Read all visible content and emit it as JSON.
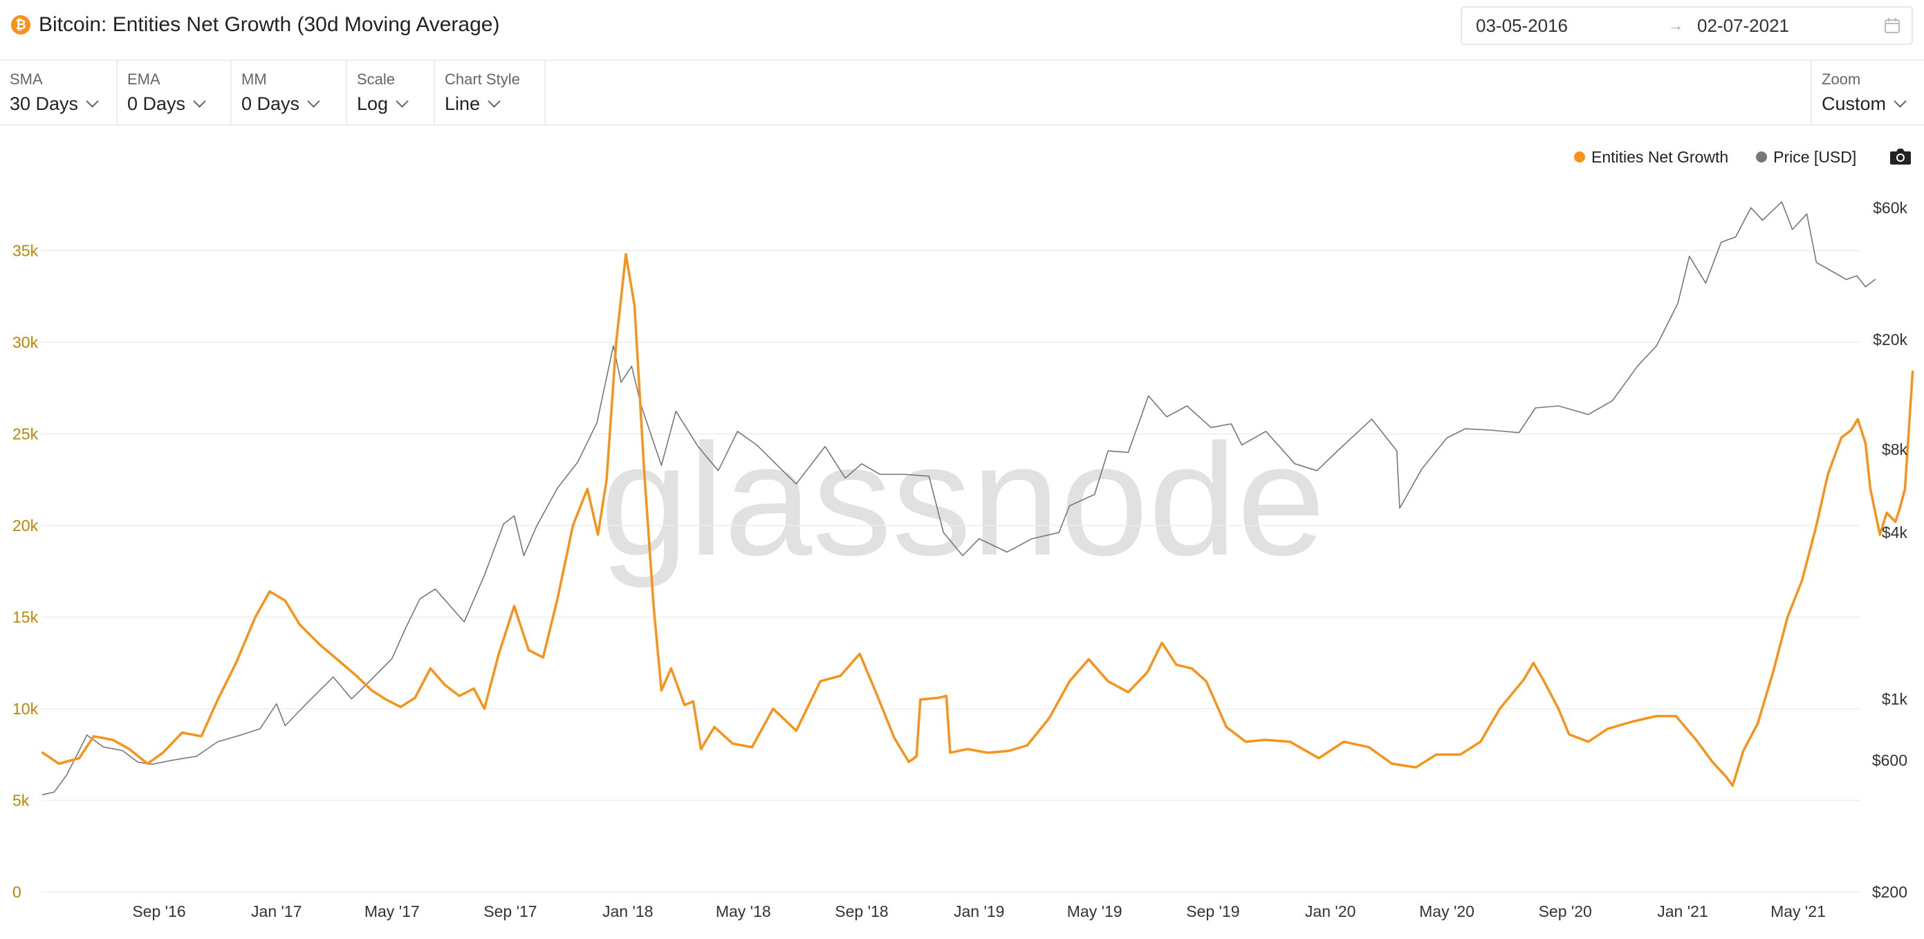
{
  "header": {
    "title": "Bitcoin: Entities Net Growth (30d Moving Average)",
    "icon": "bitcoin-icon",
    "date_start": "03-05-2016",
    "date_arrow": "→",
    "date_end": "02-07-2021"
  },
  "toolbar": {
    "sma": {
      "label": "SMA",
      "value": "30 Days"
    },
    "ema": {
      "label": "EMA",
      "value": "0 Days"
    },
    "mm": {
      "label": "MM",
      "value": "0 Days"
    },
    "scale": {
      "label": "Scale",
      "value": "Log"
    },
    "chart_style": {
      "label": "Chart Style",
      "value": "Line"
    },
    "zoom": {
      "label": "Zoom",
      "value": "Custom"
    }
  },
  "watermark": "glassnode",
  "colors": {
    "growth": "#f7931a",
    "price": "#777777",
    "left_axis": "#b8860b",
    "grid": "#eeeeee"
  },
  "chart_data": {
    "type": "line",
    "title": "Bitcoin: Entities Net Growth (30d Moving Average)",
    "legend": {
      "position": "top-right",
      "entries": [
        "Entities Net Growth",
        "Price [USD]"
      ]
    },
    "grid": true,
    "x_range": [
      "2016-05-03",
      "2021-07-02"
    ],
    "x_ticks": [
      {
        "date": "2016-09-01",
        "label": "Sep '16"
      },
      {
        "date": "2017-01-01",
        "label": "Jan '17"
      },
      {
        "date": "2017-05-01",
        "label": "May '17"
      },
      {
        "date": "2017-09-01",
        "label": "Sep '17"
      },
      {
        "date": "2018-01-01",
        "label": "Jan '18"
      },
      {
        "date": "2018-05-01",
        "label": "May '18"
      },
      {
        "date": "2018-09-01",
        "label": "Sep '18"
      },
      {
        "date": "2019-01-01",
        "label": "Jan '19"
      },
      {
        "date": "2019-05-01",
        "label": "May '19"
      },
      {
        "date": "2019-09-01",
        "label": "Sep '19"
      },
      {
        "date": "2020-01-01",
        "label": "Jan '20"
      },
      {
        "date": "2020-05-01",
        "label": "May '20"
      },
      {
        "date": "2020-09-01",
        "label": "Sep '20"
      },
      {
        "date": "2021-01-01",
        "label": "Jan '21"
      },
      {
        "date": "2021-05-01",
        "label": "May '21"
      }
    ],
    "y_left": {
      "range": [
        0,
        40000
      ],
      "ticks": [
        {
          "value": 0,
          "label": "0"
        },
        {
          "value": 5000,
          "label": "5k"
        },
        {
          "value": 10000,
          "label": "10k"
        },
        {
          "value": 15000,
          "label": "15k"
        },
        {
          "value": 20000,
          "label": "20k"
        },
        {
          "value": 25000,
          "label": "25k"
        },
        {
          "value": 30000,
          "label": "30k"
        },
        {
          "value": 35000,
          "label": "35k"
        }
      ]
    },
    "y_right": {
      "scale": "log",
      "range": [
        200,
        90000
      ],
      "ticks": [
        {
          "value": 200,
          "label": "$200"
        },
        {
          "value": 600,
          "label": "$600"
        },
        {
          "value": 1000,
          "label": "$1k"
        },
        {
          "value": 4000,
          "label": "$4k"
        },
        {
          "value": 8000,
          "label": "$8k"
        },
        {
          "value": 20000,
          "label": "$20k"
        },
        {
          "value": 60000,
          "label": "$60k"
        }
      ]
    },
    "series": [
      {
        "name": "Entities Net Growth",
        "axis": "left",
        "points": [
          [
            "2016-05-03",
            7600
          ],
          [
            "2016-05-20",
            7000
          ],
          [
            "2016-06-10",
            7300
          ],
          [
            "2016-06-25",
            8500
          ],
          [
            "2016-07-15",
            8300
          ],
          [
            "2016-08-01",
            7800
          ],
          [
            "2016-08-20",
            7000
          ],
          [
            "2016-09-05",
            7600
          ],
          [
            "2016-09-25",
            8700
          ],
          [
            "2016-10-15",
            8500
          ],
          [
            "2016-11-01",
            10500
          ],
          [
            "2016-11-20",
            12500
          ],
          [
            "2016-12-10",
            15000
          ],
          [
            "2016-12-25",
            16400
          ],
          [
            "2017-01-10",
            15900
          ],
          [
            "2017-01-25",
            14600
          ],
          [
            "2017-02-15",
            13500
          ],
          [
            "2017-03-05",
            12700
          ],
          [
            "2017-03-25",
            11800
          ],
          [
            "2017-04-10",
            11000
          ],
          [
            "2017-04-25",
            10500
          ],
          [
            "2017-05-10",
            10100
          ],
          [
            "2017-05-25",
            10600
          ],
          [
            "2017-06-10",
            12200
          ],
          [
            "2017-06-25",
            11300
          ],
          [
            "2017-07-10",
            10700
          ],
          [
            "2017-07-25",
            11100
          ],
          [
            "2017-08-05",
            10000
          ],
          [
            "2017-08-20",
            13000
          ],
          [
            "2017-09-05",
            15600
          ],
          [
            "2017-09-20",
            13200
          ],
          [
            "2017-10-05",
            12800
          ],
          [
            "2017-10-20",
            16000
          ],
          [
            "2017-11-05",
            20000
          ],
          [
            "2017-11-20",
            22000
          ],
          [
            "2017-12-01",
            19500
          ],
          [
            "2017-12-10",
            22500
          ],
          [
            "2017-12-20",
            30000
          ],
          [
            "2017-12-30",
            34800
          ],
          [
            "2018-01-08",
            32000
          ],
          [
            "2018-01-18",
            23000
          ],
          [
            "2018-01-28",
            15500
          ],
          [
            "2018-02-05",
            11000
          ],
          [
            "2018-02-15",
            12200
          ],
          [
            "2018-03-01",
            10200
          ],
          [
            "2018-03-10",
            10400
          ],
          [
            "2018-03-18",
            7800
          ],
          [
            "2018-04-01",
            9000
          ],
          [
            "2018-04-20",
            8100
          ],
          [
            "2018-05-10",
            7900
          ],
          [
            "2018-06-01",
            10000
          ],
          [
            "2018-06-25",
            8800
          ],
          [
            "2018-07-20",
            11500
          ],
          [
            "2018-08-10",
            11800
          ],
          [
            "2018-08-30",
            13000
          ],
          [
            "2018-09-15",
            11000
          ],
          [
            "2018-10-05",
            8400
          ],
          [
            "2018-10-20",
            7100
          ],
          [
            "2018-10-28",
            7400
          ],
          [
            "2018-11-01",
            10500
          ],
          [
            "2018-11-20",
            10600
          ],
          [
            "2018-11-28",
            10700
          ],
          [
            "2018-12-02",
            7600
          ],
          [
            "2018-12-20",
            7800
          ],
          [
            "2019-01-10",
            7600
          ],
          [
            "2019-02-01",
            7700
          ],
          [
            "2019-02-20",
            8000
          ],
          [
            "2019-03-15",
            9500
          ],
          [
            "2019-04-05",
            11500
          ],
          [
            "2019-04-25",
            12700
          ],
          [
            "2019-05-15",
            11500
          ],
          [
            "2019-06-05",
            10900
          ],
          [
            "2019-06-25",
            12000
          ],
          [
            "2019-07-10",
            13600
          ],
          [
            "2019-07-25",
            12400
          ],
          [
            "2019-08-10",
            12200
          ],
          [
            "2019-08-25",
            11500
          ],
          [
            "2019-09-15",
            9000
          ],
          [
            "2019-10-05",
            8200
          ],
          [
            "2019-10-25",
            8300
          ],
          [
            "2019-11-20",
            8200
          ],
          [
            "2019-12-20",
            7300
          ],
          [
            "2020-01-15",
            8200
          ],
          [
            "2020-02-10",
            7900
          ],
          [
            "2020-03-05",
            7000
          ],
          [
            "2020-03-30",
            6800
          ],
          [
            "2020-04-20",
            7500
          ],
          [
            "2020-05-15",
            7500
          ],
          [
            "2020-06-05",
            8200
          ],
          [
            "2020-06-25",
            10000
          ],
          [
            "2020-07-20",
            11600
          ],
          [
            "2020-07-30",
            12500
          ],
          [
            "2020-08-10",
            11500
          ],
          [
            "2020-08-25",
            10000
          ],
          [
            "2020-09-05",
            8600
          ],
          [
            "2020-09-25",
            8200
          ],
          [
            "2020-10-15",
            8900
          ],
          [
            "2020-11-10",
            9300
          ],
          [
            "2020-12-05",
            9600
          ],
          [
            "2020-12-25",
            9600
          ],
          [
            "2021-01-15",
            8300
          ],
          [
            "2021-02-01",
            7100
          ],
          [
            "2021-02-15",
            6300
          ],
          [
            "2021-02-22",
            5800
          ],
          [
            "2021-03-05",
            7700
          ],
          [
            "2021-03-20",
            9200
          ],
          [
            "2021-04-05",
            12000
          ],
          [
            "2021-04-20",
            15000
          ],
          [
            "2021-05-05",
            17000
          ],
          [
            "2021-05-20",
            20000
          ],
          [
            "2021-06-01",
            22800
          ],
          [
            "2021-06-15",
            24800
          ],
          [
            "2021-06-25",
            25200
          ],
          [
            "2021-07-02",
            25800
          ],
          [
            "2021-07-10",
            24500
          ],
          [
            "2021-07-15",
            22000
          ],
          [
            "2021-07-25",
            19500
          ],
          [
            "2021-08-01",
            20700
          ],
          [
            "2021-08-10",
            20200
          ],
          [
            "2021-08-15",
            21000
          ],
          [
            "2021-08-20",
            22000
          ],
          [
            "2021-08-28",
            28400
          ]
        ]
      },
      {
        "name": "Price [USD]",
        "axis": "right",
        "points": [
          [
            "2016-05-03",
            450
          ],
          [
            "2016-05-15",
            460
          ],
          [
            "2016-05-28",
            530
          ],
          [
            "2016-06-10",
            650
          ],
          [
            "2016-06-18",
            740
          ],
          [
            "2016-07-05",
            670
          ],
          [
            "2016-07-25",
            650
          ],
          [
            "2016-08-10",
            590
          ],
          [
            "2016-08-25",
            580
          ],
          [
            "2016-09-15",
            600
          ],
          [
            "2016-10-10",
            620
          ],
          [
            "2016-11-01",
            700
          ],
          [
            "2016-11-25",
            740
          ],
          [
            "2016-12-15",
            780
          ],
          [
            "2017-01-01",
            960
          ],
          [
            "2017-01-10",
            800
          ],
          [
            "2017-02-01",
            960
          ],
          [
            "2017-03-01",
            1200
          ],
          [
            "2017-03-20",
            1000
          ],
          [
            "2017-04-10",
            1180
          ],
          [
            "2017-05-01",
            1400
          ],
          [
            "2017-05-15",
            1800
          ],
          [
            "2017-05-30",
            2300
          ],
          [
            "2017-06-15",
            2500
          ],
          [
            "2017-07-15",
            1900
          ],
          [
            "2017-08-05",
            2800
          ],
          [
            "2017-08-25",
            4300
          ],
          [
            "2017-09-05",
            4600
          ],
          [
            "2017-09-15",
            3300
          ],
          [
            "2017-09-28",
            4200
          ],
          [
            "2017-10-20",
            5800
          ],
          [
            "2017-11-10",
            7200
          ],
          [
            "2017-11-30",
            10000
          ],
          [
            "2017-12-17",
            19000
          ],
          [
            "2017-12-25",
            14000
          ],
          [
            "2018-01-05",
            16000
          ],
          [
            "2018-01-15",
            11500
          ],
          [
            "2018-02-05",
            7000
          ],
          [
            "2018-02-20",
            11000
          ],
          [
            "2018-03-15",
            8200
          ],
          [
            "2018-04-05",
            6700
          ],
          [
            "2018-04-25",
            9300
          ],
          [
            "2018-05-15",
            8300
          ],
          [
            "2018-06-25",
            6000
          ],
          [
            "2018-07-25",
            8200
          ],
          [
            "2018-08-15",
            6300
          ],
          [
            "2018-09-01",
            7100
          ],
          [
            "2018-09-20",
            6500
          ],
          [
            "2018-10-15",
            6500
          ],
          [
            "2018-11-10",
            6400
          ],
          [
            "2018-11-25",
            4000
          ],
          [
            "2018-12-15",
            3300
          ],
          [
            "2019-01-01",
            3800
          ],
          [
            "2019-01-30",
            3400
          ],
          [
            "2019-02-25",
            3800
          ],
          [
            "2019-03-25",
            4000
          ],
          [
            "2019-04-05",
            5000
          ],
          [
            "2019-05-01",
            5500
          ],
          [
            "2019-05-15",
            7900
          ],
          [
            "2019-06-05",
            7800
          ],
          [
            "2019-06-26",
            12500
          ],
          [
            "2019-07-15",
            10500
          ],
          [
            "2019-08-05",
            11500
          ],
          [
            "2019-08-30",
            9600
          ],
          [
            "2019-09-20",
            9900
          ],
          [
            "2019-10-01",
            8300
          ],
          [
            "2019-10-26",
            9300
          ],
          [
            "2019-11-25",
            7100
          ],
          [
            "2019-12-18",
            6700
          ],
          [
            "2020-01-10",
            8000
          ],
          [
            "2020-02-13",
            10300
          ],
          [
            "2020-03-10",
            7900
          ],
          [
            "2020-03-13",
            4900
          ],
          [
            "2020-04-05",
            6800
          ],
          [
            "2020-05-01",
            8800
          ],
          [
            "2020-05-20",
            9500
          ],
          [
            "2020-06-15",
            9400
          ],
          [
            "2020-07-15",
            9200
          ],
          [
            "2020-08-01",
            11300
          ],
          [
            "2020-08-25",
            11500
          ],
          [
            "2020-09-25",
            10700
          ],
          [
            "2020-10-20",
            12000
          ],
          [
            "2020-11-15",
            16000
          ],
          [
            "2020-12-05",
            19000
          ],
          [
            "2020-12-27",
            27000
          ],
          [
            "2021-01-08",
            40000
          ],
          [
            "2021-01-25",
            32000
          ],
          [
            "2021-02-10",
            45000
          ],
          [
            "2021-02-25",
            47000
          ],
          [
            "2021-03-13",
            60000
          ],
          [
            "2021-03-25",
            54000
          ],
          [
            "2021-04-14",
            63000
          ],
          [
            "2021-04-25",
            50000
          ],
          [
            "2021-05-10",
            57000
          ],
          [
            "2021-05-20",
            38000
          ],
          [
            "2021-06-01",
            36000
          ],
          [
            "2021-06-20",
            33000
          ],
          [
            "2021-07-01",
            34000
          ],
          [
            "2021-07-10",
            31000
          ],
          [
            "2021-07-20",
            33000
          ]
        ]
      }
    ]
  }
}
